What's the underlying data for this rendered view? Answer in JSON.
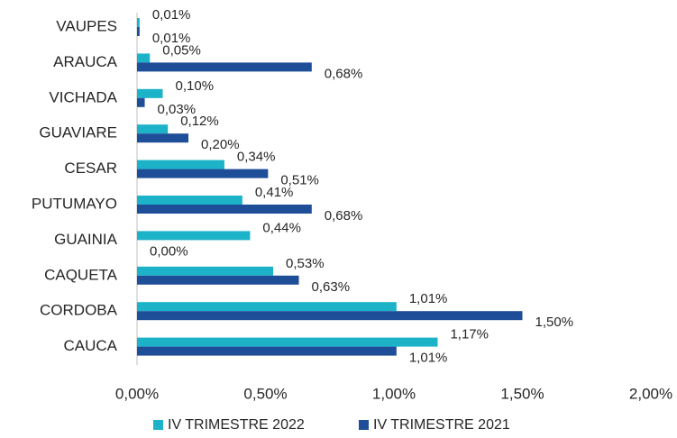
{
  "chart_data": {
    "type": "hbar",
    "categories": [
      "VAUPES",
      "ARAUCA",
      "VICHADA",
      "GUAVIARE",
      "CESAR",
      "PUTUMAYO",
      "GUAINIA",
      "CAQUETA",
      "CORDOBA",
      "CAUCA"
    ],
    "series": [
      {
        "name": "IV TRIMESTRE 2022",
        "color": "#1cb2c8",
        "values": [
          0.01,
          0.05,
          0.1,
          0.12,
          0.34,
          0.41,
          0.44,
          0.53,
          1.01,
          1.17
        ],
        "value_labels": [
          "0,01%",
          "0,05%",
          "0,10%",
          "0,12%",
          "0,34%",
          "0,41%",
          "0,44%",
          "0,53%",
          "1,01%",
          "1,17%"
        ]
      },
      {
        "name": "IV TRIMESTRE 2021",
        "color": "#1f4e99",
        "values": [
          0.01,
          0.68,
          0.03,
          0.2,
          0.51,
          0.68,
          0.0,
          0.63,
          1.5,
          1.01
        ],
        "value_labels": [
          "0,01%",
          "0,68%",
          "0,03%",
          "0,20%",
          "0,51%",
          "0,68%",
          "0,00%",
          "0,63%",
          "1,50%",
          "1,01%"
        ]
      }
    ],
    "xlim": [
      0,
      2
    ],
    "xticks": [
      {
        "value": 0,
        "label": "0,00%"
      },
      {
        "value": 0.5,
        "label": "0,50%"
      },
      {
        "value": 1,
        "label": "1,00%"
      },
      {
        "value": 1.5,
        "label": "1,50%"
      },
      {
        "value": 2,
        "label": "2,00%"
      }
    ],
    "legend": "bottom"
  }
}
